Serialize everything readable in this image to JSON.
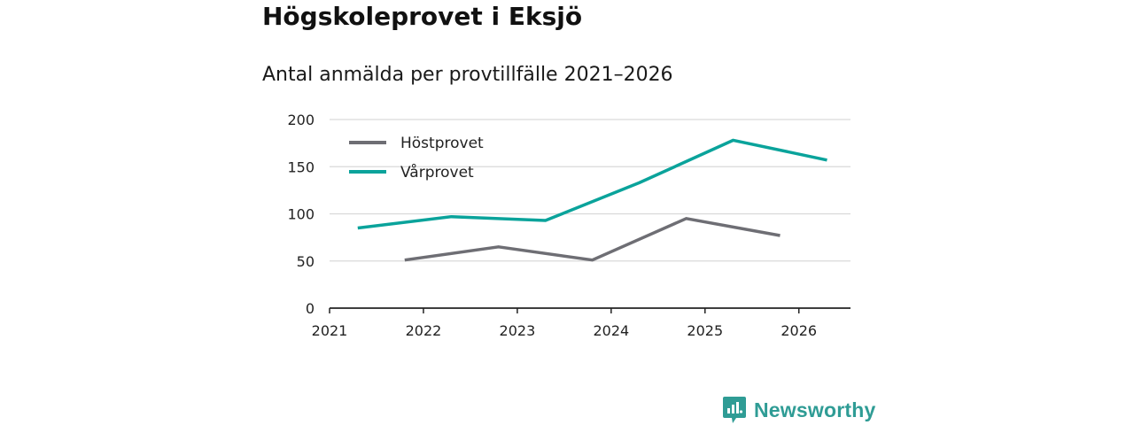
{
  "title": "Högskoleprovet i Eksjö",
  "subtitle": "Antal anmälda per provtillfälle 2021–2026",
  "brand": {
    "name": "Newsworthy"
  },
  "colors": {
    "host": "#6e6e74",
    "var": "#0aa39b",
    "grid": "#d9d9d9",
    "axis": "#222222"
  },
  "chart_data": {
    "type": "line",
    "title": "Högskoleprovet i Eksjö",
    "subtitle": "Antal anmälda per provtillfälle 2021–2026",
    "xlabel": "",
    "ylabel": "",
    "xlim": [
      2021,
      2026.55
    ],
    "ylim": [
      0,
      200
    ],
    "yticks": [
      0,
      50,
      100,
      150,
      200
    ],
    "xticks": [
      2021,
      2022,
      2023,
      2024,
      2025,
      2026
    ],
    "legend": "top-left",
    "grid": true,
    "series": [
      {
        "name": "Höstprovet",
        "color": "#6e6e74",
        "x": [
          2021.8,
          2022.8,
          2023.8,
          2024.8,
          2025.8
        ],
        "values": [
          51,
          65,
          51,
          95,
          77
        ]
      },
      {
        "name": "Vårprovet",
        "color": "#0aa39b",
        "x": [
          2021.3,
          2022.3,
          2023.3,
          2024.3,
          2025.3,
          2026.3
        ],
        "values": [
          85,
          97,
          93,
          133,
          178,
          157
        ]
      }
    ]
  }
}
